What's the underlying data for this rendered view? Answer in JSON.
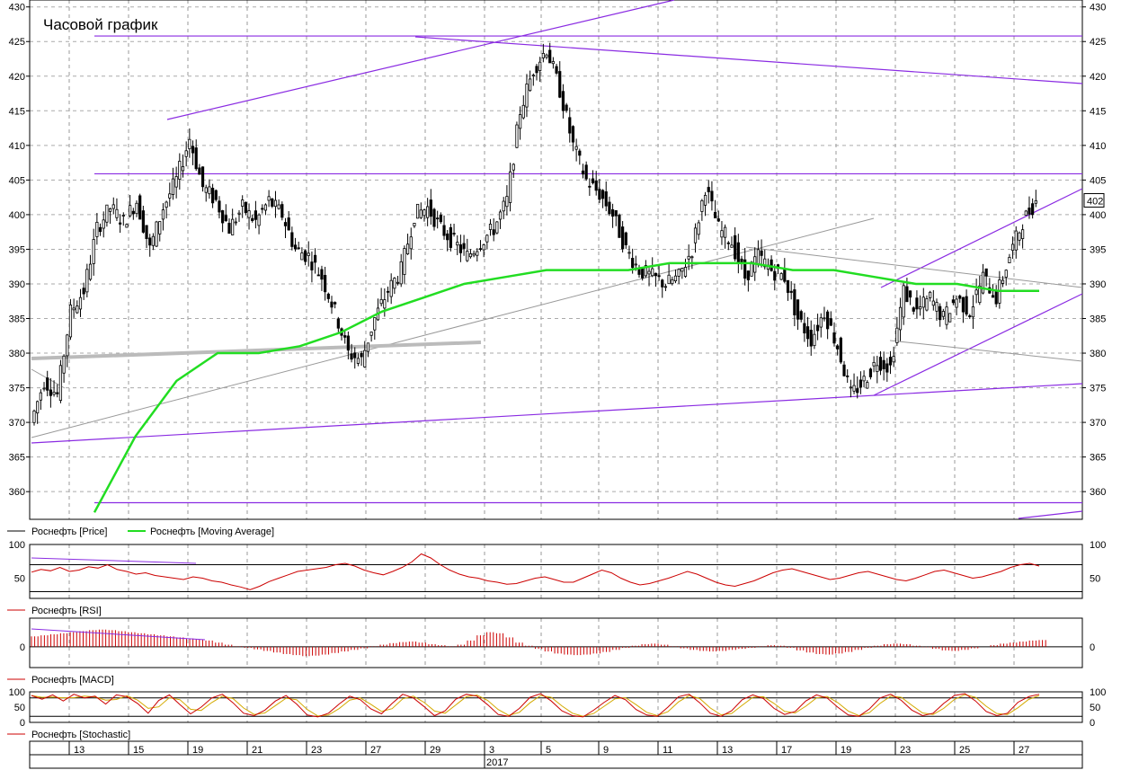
{
  "title": "Часовой график",
  "last_price_label": "402",
  "colors": {
    "price": "#000000",
    "ma": "#22dd22",
    "trend": "#8a2be2",
    "gray_line": "#999999",
    "thick_gray": "#bbbbbb",
    "rsi": "#cc0000",
    "macd": "#cc0000",
    "stoch_k": "#cc0000",
    "stoch_d": "#d4aa00"
  },
  "chart_data": [
    {
      "type": "line",
      "name": "price",
      "ylim": [
        356,
        431
      ],
      "y_ticks": [
        430,
        425,
        420,
        415,
        410,
        405,
        400,
        395,
        390,
        385,
        380,
        375,
        370,
        365,
        360
      ],
      "x_tick_labels": [
        "13",
        "15",
        "19",
        "21",
        "23",
        "27",
        "29",
        "3",
        "5",
        "9",
        "11",
        "13",
        "17",
        "19",
        "23",
        "25",
        "27"
      ],
      "x_year_label": "2017",
      "legend": [
        "Роснефть [Price]",
        "Роснефть [Moving Average]"
      ],
      "close_series": [
        370,
        376,
        374,
        386,
        389,
        398,
        401,
        399,
        402,
        395,
        401,
        405,
        411,
        404,
        402,
        398,
        401,
        399,
        402,
        400,
        395,
        394,
        391,
        386,
        380,
        379,
        385,
        389,
        392,
        400,
        401,
        398,
        396,
        394,
        396,
        398,
        402,
        415,
        421,
        424,
        418,
        410,
        405,
        403,
        400,
        395,
        392,
        391,
        390,
        391,
        395,
        404,
        398,
        396,
        391,
        394,
        392,
        391,
        385,
        382,
        386,
        381,
        374,
        376,
        379,
        378,
        389,
        386,
        388,
        385,
        388,
        386,
        391,
        388,
        394,
        399,
        402
      ],
      "moving_average_series": [
        357,
        368,
        376,
        380,
        380,
        381,
        383,
        386,
        388,
        390,
        391,
        392,
        392,
        392,
        393,
        393,
        393,
        392,
        392,
        391,
        390,
        390,
        389,
        389
      ],
      "hlines": [
        405.9,
        425.8,
        358.4
      ],
      "annotation_last": 402
    },
    {
      "type": "line",
      "name": "RSI",
      "legend": "Роснефть [RSI]",
      "ylim": [
        20,
        100
      ],
      "y_ticks": [
        100,
        50
      ],
      "levels": [
        70,
        30
      ],
      "values": [
        59,
        63,
        61,
        66,
        60,
        62,
        67,
        65,
        70,
        63,
        60,
        56,
        58,
        54,
        52,
        50,
        48,
        52,
        50,
        46,
        44,
        40,
        37,
        33,
        38,
        45,
        50,
        55,
        60,
        62,
        64,
        66,
        70,
        72,
        68,
        62,
        58,
        55,
        60,
        66,
        74,
        86,
        80,
        70,
        62,
        56,
        52,
        50,
        46,
        44,
        41,
        42,
        46,
        50,
        52,
        48,
        44,
        44,
        50,
        56,
        62,
        58,
        50,
        44,
        40,
        42,
        46,
        50,
        55,
        60,
        56,
        50,
        44,
        40,
        38,
        42,
        46,
        52,
        58,
        62,
        64,
        60,
        56,
        52,
        48,
        50,
        54,
        58,
        60,
        56,
        52,
        48,
        46,
        50,
        55,
        60,
        62,
        58,
        54,
        50,
        52,
        56,
        60,
        66,
        70,
        72,
        68
      ]
    },
    {
      "type": "bar",
      "name": "MACD",
      "legend": "Роснефть [MACD]",
      "ylim": [
        -4,
        5.5
      ],
      "y_ticks": [
        0
      ],
      "values": [
        2,
        2.2,
        2.4,
        2.6,
        2.8,
        3,
        3.2,
        3.3,
        3.2,
        3,
        2.8,
        2.6,
        2.4,
        2.2,
        2,
        1.8,
        1.6,
        1.4,
        1.2,
        0.8,
        0.4,
        0.1,
        -0.2,
        -0.5,
        -0.8,
        -1.1,
        -1.4,
        -1.6,
        -1.8,
        -1.7,
        -1.5,
        -1.2,
        -0.9,
        -0.6,
        -0.3,
        0.1,
        0.4,
        0.7,
        0.9,
        1.0,
        0.8,
        0.5,
        0.3,
        0.1,
        0.4,
        1.2,
        2.2,
        2.8,
        2.6,
        1.8,
        0.8,
        0.2,
        -0.4,
        -0.9,
        -1.3,
        -1.5,
        -1.6,
        -1.5,
        -1.3,
        -1.0,
        -0.6,
        -0.2,
        0.2,
        0.5,
        0.6,
        0.4,
        0.1,
        -0.3,
        -0.6,
        -0.8,
        -0.9,
        -0.8,
        -0.6,
        -0.4,
        -0.2,
        0.1,
        0.3,
        0.2,
        -0.2,
        -0.7,
        -1.1,
        -1.4,
        -1.5,
        -1.3,
        -1.0,
        -0.6,
        -0.2,
        0.2,
        0.5,
        0.6,
        0.5,
        0.2,
        -0.1,
        -0.4,
        -0.7,
        -0.8,
        -0.6,
        -0.3,
        0,
        0.3,
        0.6,
        0.8,
        1.0,
        1.2,
        1.3
      ]
    },
    {
      "type": "line",
      "name": "Stochastic",
      "legend": "Роснефть [Stochastic]",
      "ylim": [
        0,
        100
      ],
      "y_ticks": [
        100,
        50,
        0
      ],
      "levels": [
        80,
        20
      ],
      "values": [
        88,
        76,
        90,
        70,
        92,
        80,
        86,
        60,
        90,
        84,
        62,
        30,
        72,
        90,
        58,
        28,
        50,
        80,
        92,
        64,
        30,
        22,
        40,
        70,
        88,
        60,
        24,
        18,
        30,
        60,
        86,
        74,
        44,
        28,
        62,
        92,
        80,
        52,
        22,
        38,
        76,
        92,
        86,
        58,
        26,
        20,
        46,
        82,
        94,
        70,
        38,
        22,
        18,
        40,
        66,
        88,
        74,
        42,
        24,
        20,
        50,
        84,
        92,
        64,
        30,
        20,
        38,
        74,
        90,
        78,
        46,
        26,
        36,
        70,
        90,
        80,
        50,
        24,
        20,
        44,
        80,
        92,
        72,
        40,
        22,
        30,
        62,
        88,
        94,
        70,
        36,
        22,
        30,
        66,
        84,
        92
      ]
    }
  ]
}
